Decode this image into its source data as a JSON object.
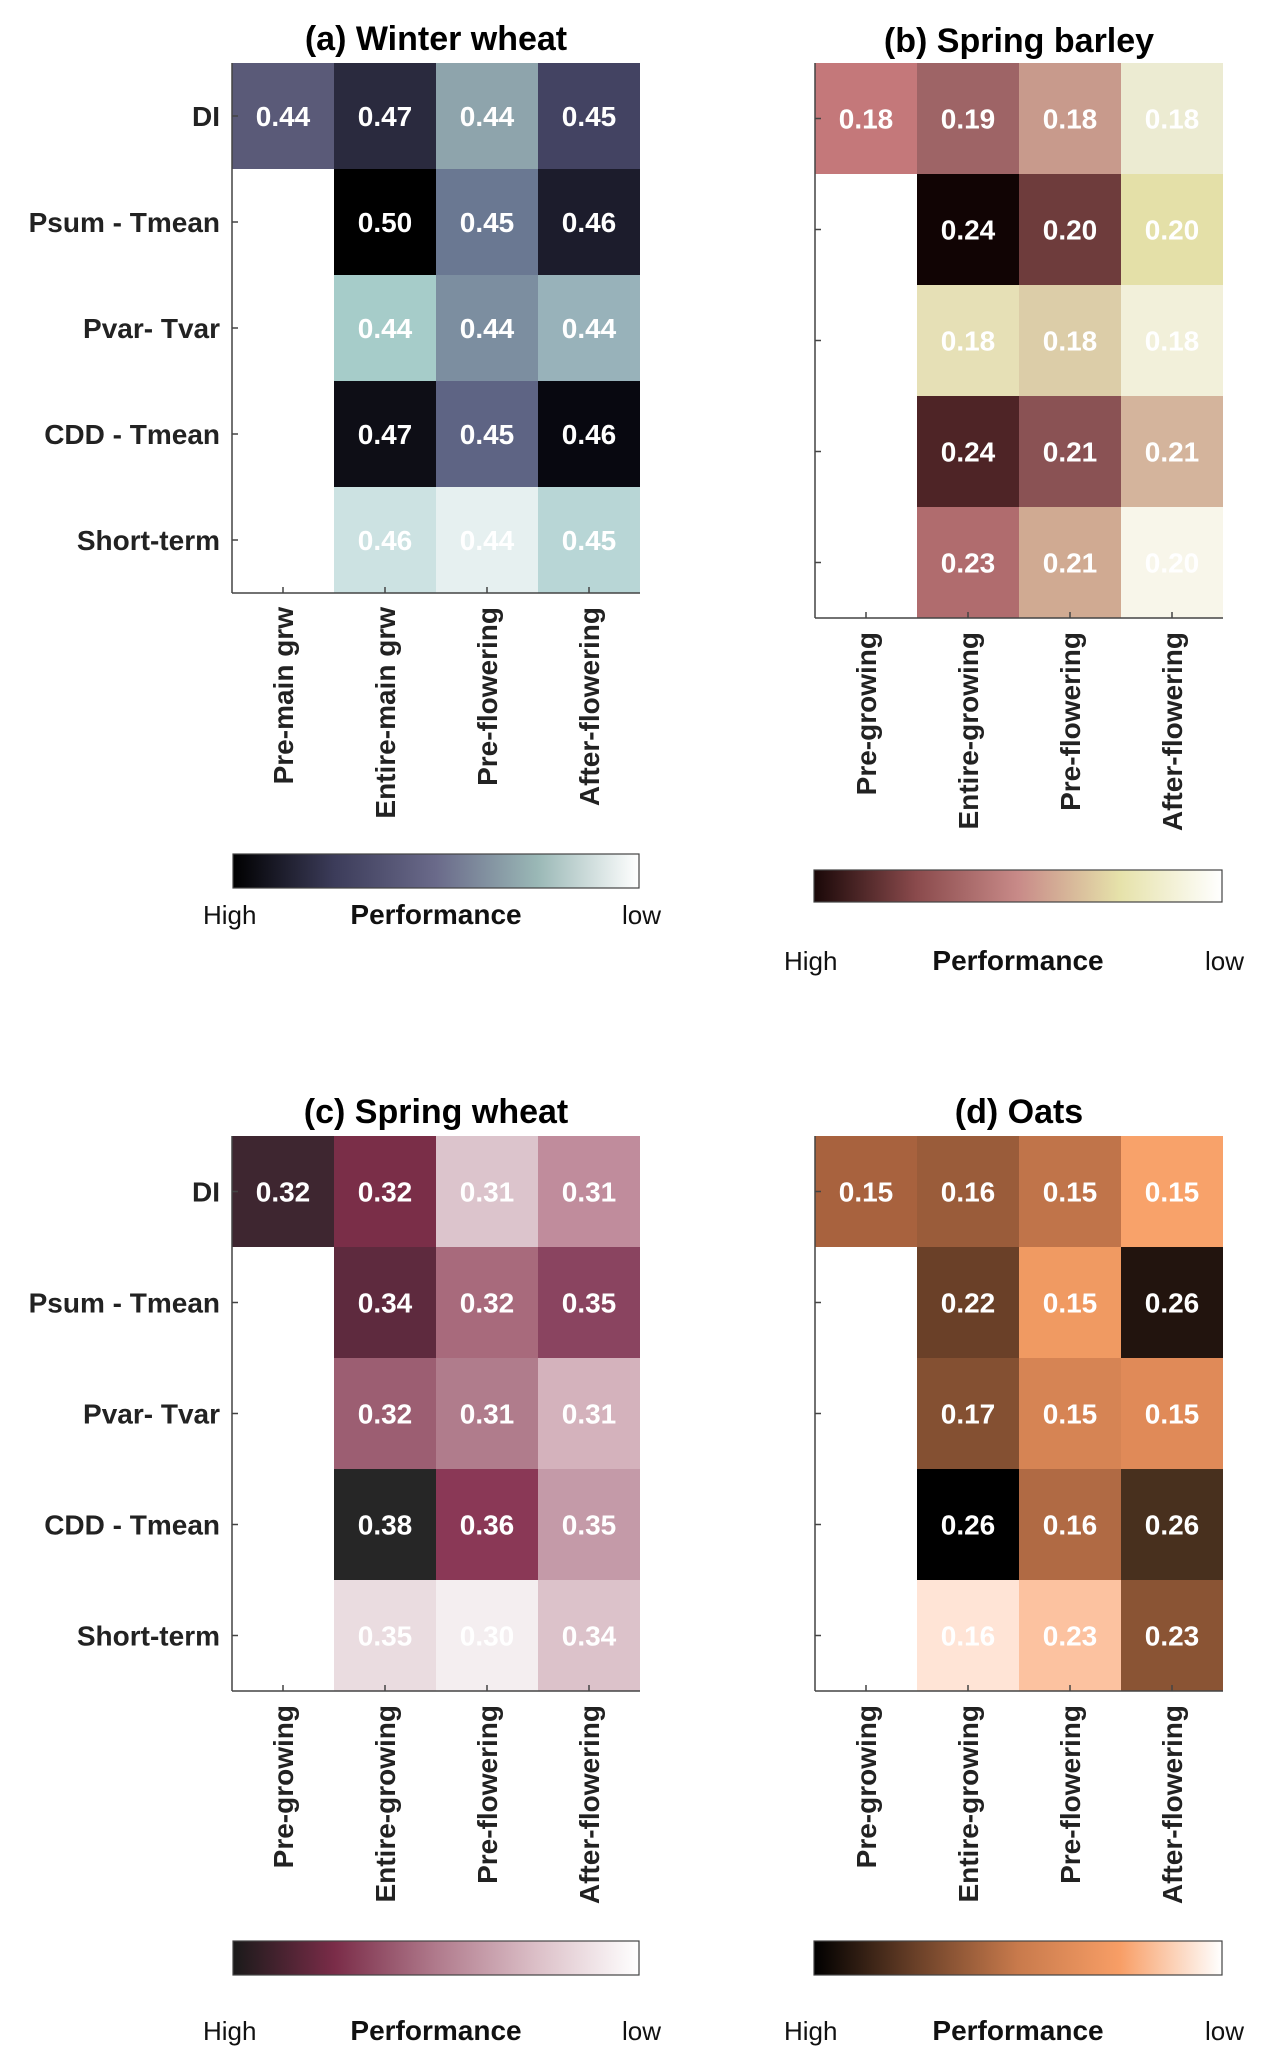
{
  "colorbar_labels": {
    "high": "High",
    "low": "low",
    "title": "Performance"
  },
  "chart_data": [
    {
      "id": "a",
      "type": "heatmap",
      "title": "(a) Winter wheat",
      "rows": [
        "DI",
        "Psum - Tmean",
        "Pvar- Tvar",
        "CDD - Tmean",
        "Short-term"
      ],
      "columns": [
        "Pre-main grw",
        "Entire-main grw",
        "Pre-flowering",
        "After-flowering"
      ],
      "show_row_labels": true,
      "values": [
        [
          "0.44",
          "0.47",
          "0.44",
          "0.45"
        ],
        [
          null,
          "0.50",
          "0.45",
          "0.46"
        ],
        [
          null,
          "0.44",
          "0.44",
          "0.44"
        ],
        [
          null,
          "0.47",
          "0.45",
          "0.46"
        ],
        [
          null,
          "0.46",
          "0.44",
          "0.45"
        ]
      ],
      "cell_colors": [
        [
          "#5a5a78",
          "#2a2a3e",
          "#8ea4ac",
          "#434362"
        ],
        [
          null,
          "#000000",
          "#6a7892",
          "#1c1c2c"
        ],
        [
          null,
          "#a6ccc9",
          "#7c8ea0",
          "#98b2ba"
        ],
        [
          null,
          "#0e0e16",
          "#5e6484",
          "#080810"
        ],
        [
          null,
          "#cce2e2",
          "#e6f0f0",
          "#b8d6d6"
        ]
      ],
      "text_colors": [
        [
          "#ffffff",
          "#ffffff",
          "#ffffff",
          "#ffffff"
        ],
        [
          null,
          "#ffffff",
          "#ffffff",
          "#ffffff"
        ],
        [
          null,
          "#ffffff",
          "#ffffff",
          "#ffffff"
        ],
        [
          null,
          "#ffffff",
          "#ffffff",
          "#ffffff"
        ],
        [
          null,
          "#ffffff",
          "#ffffff",
          "#ffffff"
        ]
      ],
      "colorbar": [
        "#000000",
        "#3c3c5a",
        "#6a6a8a",
        "#9ab8b6",
        "#ffffff"
      ]
    },
    {
      "id": "b",
      "type": "heatmap",
      "title": "(b) Spring barley",
      "rows": [
        "DI",
        "Psum - Tmean",
        "Pvar- Tvar",
        "CDD - Tmean",
        "Short-term"
      ],
      "columns": [
        "Pre-growing",
        "Entire-growing",
        "Pre-flowering",
        "After-flowering"
      ],
      "show_row_labels": false,
      "values": [
        [
          "0.18",
          "0.19",
          "0.18",
          "0.18"
        ],
        [
          null,
          "0.24",
          "0.20",
          "0.20"
        ],
        [
          null,
          "0.18",
          "0.18",
          "0.18"
        ],
        [
          null,
          "0.24",
          "0.21",
          "0.21"
        ],
        [
          null,
          "0.23",
          "0.21",
          "0.20"
        ]
      ],
      "cell_colors": [
        [
          "#c4787a",
          "#9e6466",
          "#c89a8c",
          "#ecebd2"
        ],
        [
          null,
          "#110404",
          "#6e3c3c",
          "#e4e0a8"
        ],
        [
          null,
          "#e6e0b6",
          "#dccda8",
          "#f2f0da"
        ],
        [
          null,
          "#4e2426",
          "#8a5254",
          "#d4b49c"
        ],
        [
          null,
          "#b06c6e",
          "#d0aa92",
          "#f8f6ea"
        ]
      ],
      "text_colors": [
        [
          "#ffffff",
          "#ffffff",
          "#ffffff",
          "#ffffff"
        ],
        [
          null,
          "#ffffff",
          "#ffffff",
          "#ffffff"
        ],
        [
          null,
          "#ffffff",
          "#ffffff",
          "#ffffff"
        ],
        [
          null,
          "#ffffff",
          "#ffffff",
          "#ffffff"
        ],
        [
          null,
          "#ffffff",
          "#ffffff",
          "#ffffff"
        ]
      ],
      "colorbar": [
        "#1a0808",
        "#8a4a4c",
        "#c88a88",
        "#e6e2aa",
        "#ffffff"
      ]
    },
    {
      "id": "c",
      "type": "heatmap",
      "title": "(c) Spring wheat",
      "rows": [
        "DI",
        "Psum - Tmean",
        "Pvar- Tvar",
        "CDD - Tmean",
        "Short-term"
      ],
      "columns": [
        "Pre-growing",
        "Entire-growing",
        "Pre-flowering",
        "After-flowering"
      ],
      "show_row_labels": true,
      "values": [
        [
          "0.32",
          "0.32",
          "0.31",
          "0.31"
        ],
        [
          null,
          "0.34",
          "0.32",
          "0.35"
        ],
        [
          null,
          "0.32",
          "0.31",
          "0.31"
        ],
        [
          null,
          "0.38",
          "0.36",
          "0.35"
        ],
        [
          null,
          "0.35",
          "0.30",
          "0.34"
        ]
      ],
      "cell_colors": [
        [
          "#3e2630",
          "#7a2e48",
          "#dcc4cc",
          "#c08c9c"
        ],
        [
          null,
          "#5e2a3e",
          "#a86a7c",
          "#8a4460"
        ],
        [
          null,
          "#9c5e72",
          "#b07c8c",
          "#d4b2bc"
        ],
        [
          null,
          "#262626",
          "#8a3856",
          "#c49aa8"
        ],
        [
          null,
          "#eadce0",
          "#f4eef0",
          "#dcc2ca"
        ]
      ],
      "text_colors": [
        [
          "#ffffff",
          "#ffffff",
          "#ffffff",
          "#ffffff"
        ],
        [
          null,
          "#ffffff",
          "#ffffff",
          "#ffffff"
        ],
        [
          null,
          "#ffffff",
          "#ffffff",
          "#ffffff"
        ],
        [
          null,
          "#ffffff",
          "#ffffff",
          "#ffffff"
        ],
        [
          null,
          "#ffffff",
          "#ffffff",
          "#ffffff"
        ]
      ],
      "colorbar": [
        "#1a1a1a",
        "#7a2c48",
        "#b07a8c",
        "#dcc0c8",
        "#ffffff"
      ]
    },
    {
      "id": "d",
      "type": "heatmap",
      "title": "(d) Oats",
      "rows": [
        "DI",
        "Psum - Tmean",
        "Pvar- Tvar",
        "CDD - Tmean",
        "Short-term"
      ],
      "columns": [
        "Pre-growing",
        "Entire-growing",
        "Pre-flowering",
        "After-flowering"
      ],
      "show_row_labels": false,
      "values": [
        [
          "0.15",
          "0.16",
          "0.15",
          "0.15"
        ],
        [
          null,
          "0.22",
          "0.15",
          "0.26"
        ],
        [
          null,
          "0.17",
          "0.15",
          "0.15"
        ],
        [
          null,
          "0.26",
          "0.16",
          "0.26"
        ],
        [
          null,
          "0.16",
          "0.23",
          "0.23"
        ]
      ],
      "cell_colors": [
        [
          "#a8623e",
          "#9a5c3a",
          "#c0744a",
          "#f8a26a"
        ],
        [
          null,
          "#6a4028",
          "#f09a62",
          "#22140e"
        ],
        [
          null,
          "#845032",
          "#d68454",
          "#e08a58"
        ],
        [
          null,
          "#000000",
          "#b06a44",
          "#48301e"
        ],
        [
          null,
          "#ffe4d6",
          "#fcc2a0",
          "#8a5434"
        ]
      ],
      "text_colors": [
        [
          "#ffffff",
          "#ffffff",
          "#ffffff",
          "#ffffff"
        ],
        [
          null,
          "#ffffff",
          "#ffffff",
          "#ffffff"
        ],
        [
          null,
          "#ffffff",
          "#ffffff",
          "#ffffff"
        ],
        [
          null,
          "#ffffff",
          "#ffffff",
          "#ffffff"
        ],
        [
          null,
          "#ffffff",
          "#ffffff",
          "#ffffff"
        ]
      ],
      "colorbar": [
        "#000000",
        "#6a4028",
        "#c87a4c",
        "#f89e66",
        "#ffffff"
      ]
    }
  ]
}
